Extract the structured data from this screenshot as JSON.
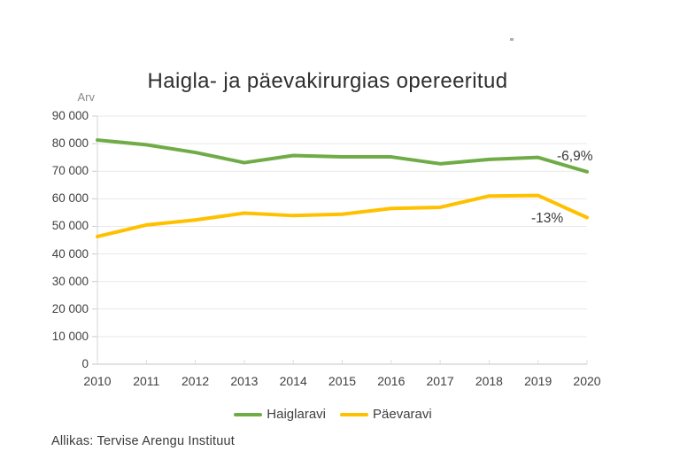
{
  "chart_data": {
    "type": "line",
    "title": "Haigla- ja päevakirurgias opereeritud",
    "xlabel": "",
    "ylabel": "Arv",
    "x": [
      2010,
      2011,
      2012,
      2013,
      2014,
      2015,
      2016,
      2017,
      2018,
      2019,
      2020
    ],
    "series": [
      {
        "name": "Haiglaravi",
        "color": "#6FAC47",
        "values": [
          81300,
          79600,
          76800,
          73100,
          75700,
          75200,
          75200,
          72700,
          74300,
          75000,
          69800
        ]
      },
      {
        "name": "Päevaravi",
        "color": "#FFC000",
        "values": [
          46300,
          50500,
          52300,
          54800,
          53900,
          54400,
          56500,
          56900,
          61000,
          61200,
          53200
        ]
      }
    ],
    "ylim": [
      0,
      90000
    ],
    "ytick_step": 10000,
    "grid": true,
    "legend_position": "bottom",
    "annotations": [
      {
        "label": "-6,9%",
        "series": "Haiglaravi",
        "x": 2020
      },
      {
        "label": "-13%",
        "series": "Päevaravi",
        "x": 2020
      }
    ]
  },
  "footer": {
    "source": "Allikas: Tervise Arengu Instituut"
  },
  "colors": {
    "gridline": "#E9E9E9",
    "axis_line": "#C4C4C4",
    "tick": "#CCCCCC",
    "text": "#3F3F3F",
    "muted_text": "#8A8A8A"
  }
}
